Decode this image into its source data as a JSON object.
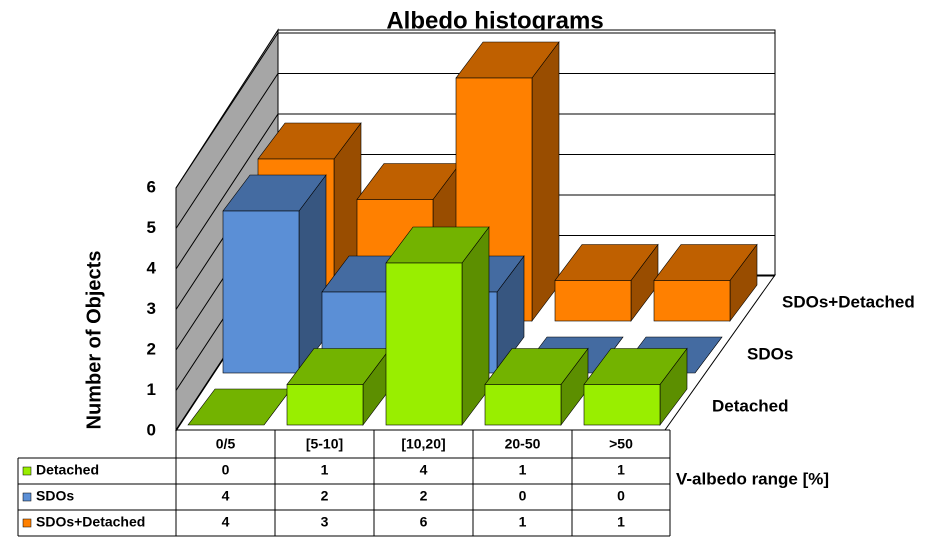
{
  "chart_data": {
    "type": "bar3d",
    "title": "Albedo  histograms",
    "y_label": "Number of Objects",
    "x_label": "V-albedo range [%]",
    "categories": [
      "0/5",
      "[5-10]",
      "[10,20]",
      "20-50",
      ">50"
    ],
    "series": [
      {
        "name": "Detached",
        "color": "#99ee00",
        "values": [
          0,
          1,
          4,
          1,
          1
        ]
      },
      {
        "name": "SDOs",
        "color": "#5b8fd6",
        "values": [
          4,
          2,
          2,
          0,
          0
        ]
      },
      {
        "name": "SDOs+Detached",
        "color": "#ff8000",
        "values": [
          4,
          3,
          6,
          1,
          1
        ]
      }
    ],
    "ylim": [
      0,
      6
    ],
    "yticks": [
      0,
      1,
      2,
      3,
      4,
      5,
      6
    ],
    "grid": true,
    "data_table": true
  }
}
